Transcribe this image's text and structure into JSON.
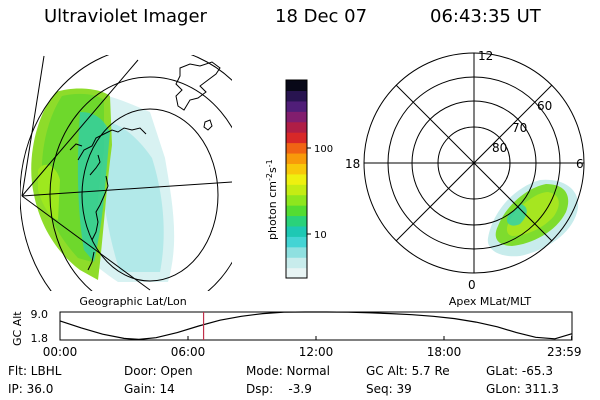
{
  "header": {
    "instrument": "Ultraviolet Imager",
    "date": "18 Dec 07",
    "time": "06:43:35 UT"
  },
  "map_geo": {
    "caption": "Geographic Lat/Lon"
  },
  "map_polar": {
    "caption": "Apex MLat/MLT",
    "mlt_labels": [
      "12",
      "18",
      "6",
      "0"
    ],
    "lat_labels": [
      "60",
      "70",
      "80"
    ]
  },
  "colorbar": {
    "unit": "photon cm",
    "unit_sup1": "-2",
    "unit_mid": "s",
    "unit_sup2": "-1",
    "ticks": [
      "100",
      "10"
    ],
    "colors": [
      "#e8f4f4",
      "#c8ecec",
      "#8fe0e0",
      "#44d4d4",
      "#1ec8b4",
      "#2ad27a",
      "#54dc32",
      "#8ee61e",
      "#c4ec14",
      "#eef010",
      "#f8c80a",
      "#f89a0a",
      "#f06414",
      "#d82828",
      "#b01e46",
      "#821e6e",
      "#501e78",
      "#281450",
      "#080818"
    ]
  },
  "chart_data": {
    "type": "line",
    "title": "",
    "ylabel": "GC Alt",
    "ylim": [
      1.8,
      9.0
    ],
    "ytick_labels": [
      "9.0",
      "1.8"
    ],
    "xlim_hours": [
      0,
      24
    ],
    "xtick_labels": [
      "00:00",
      "06:00",
      "12:00",
      "18:00",
      "23:59"
    ],
    "current_time_hours": 6.73,
    "series": [
      {
        "x": [
          0,
          1,
          2,
          3,
          3.7,
          4.5,
          5.5,
          6.5,
          7.5,
          8.5,
          9.5,
          10.5,
          11.5,
          12.5,
          13.5,
          14.5,
          15.5,
          16.5,
          17.5,
          18.5,
          19.5,
          20.5,
          21.4,
          22.3,
          23.2,
          23.98
        ],
        "y": [
          6.7,
          4.9,
          3.3,
          2.2,
          1.95,
          2.4,
          3.7,
          5.4,
          6.9,
          7.9,
          8.6,
          8.95,
          9.0,
          9.0,
          8.95,
          8.8,
          8.6,
          8.3,
          7.9,
          7.3,
          6.4,
          5.2,
          3.7,
          2.5,
          2.1,
          3.4
        ]
      }
    ]
  },
  "footer": {
    "row1": [
      "Flt: LBHL",
      "Door: Open",
      "Mode: Normal",
      "GC Alt: 5.7 Re",
      "GLat: -65.3"
    ],
    "row2": [
      "IP: 36.0",
      "Gain: 14",
      "Dsp:    -3.9",
      "Seq: 39",
      "GLon: 311.3"
    ]
  }
}
